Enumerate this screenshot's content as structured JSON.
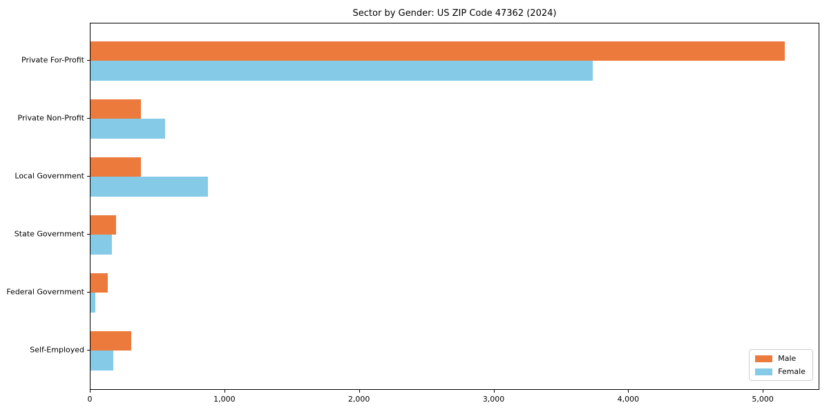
{
  "chart_data": {
    "type": "bar",
    "orientation": "horizontal",
    "title": "Sector by Gender: US ZIP Code 47362 (2024)",
    "categories": [
      "Private For-Profit",
      "Private Non-Profit",
      "Local Government",
      "State Government",
      "Federal Government",
      "Self-Employed"
    ],
    "series": [
      {
        "name": "Male",
        "color": "#EC7A3C",
        "values": [
          5160,
          375,
          373,
          190,
          130,
          305
        ]
      },
      {
        "name": "Female",
        "color": "#85CBE8",
        "values": [
          3730,
          555,
          875,
          158,
          35,
          168
        ]
      }
    ],
    "xlim": [
      0,
      5420
    ],
    "xticks": [
      0,
      1000,
      2000,
      3000,
      4000,
      5000
    ],
    "xtick_labels": [
      "0",
      "1,000",
      "2,000",
      "3,000",
      "4,000",
      "5,000"
    ],
    "xlabel": "",
    "ylabel": "",
    "grid": false,
    "legend": {
      "position": "lower right",
      "entries": [
        "Male",
        "Female"
      ]
    }
  }
}
